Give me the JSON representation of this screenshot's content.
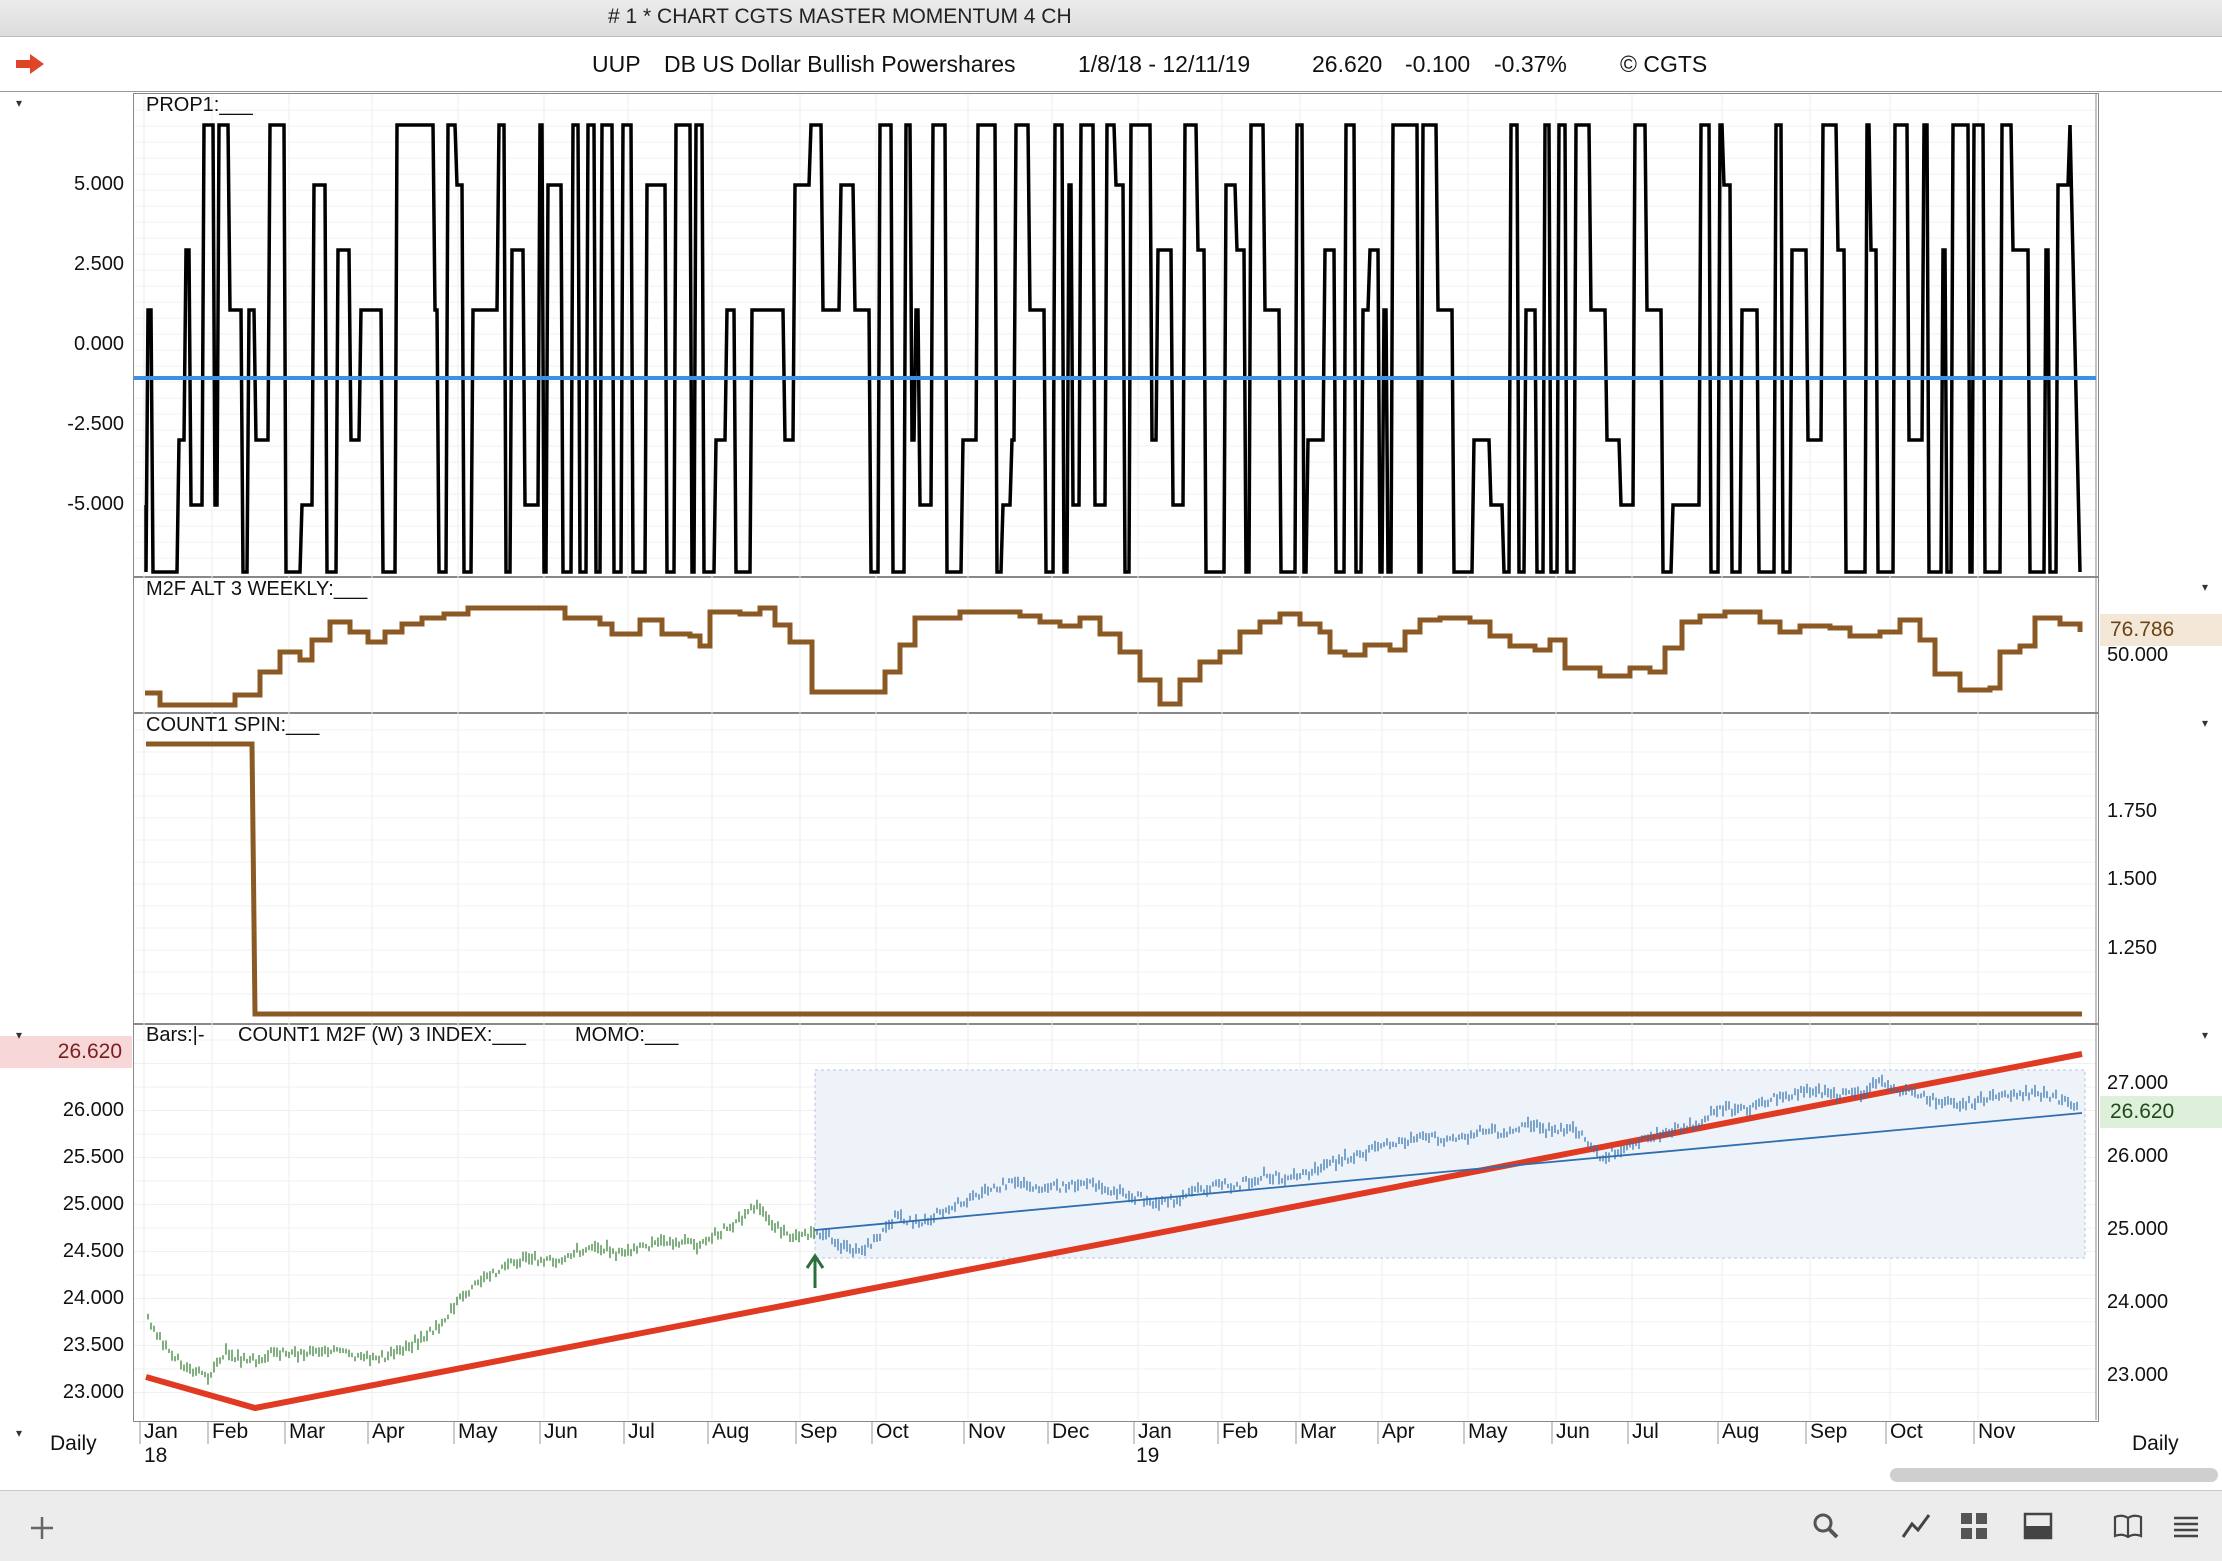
{
  "window": {
    "title": "# 1 * CHART CGTS MASTER MOMENTUM 4 CH"
  },
  "header": {
    "symbol": "UUP",
    "name": "DB US Dollar Bullish Powershares",
    "date_range": "1/8/18 - 12/11/19",
    "last": "26.620",
    "change": "-0.100",
    "change_pct": "-0.37%",
    "copyright": "© CGTS"
  },
  "panels": {
    "prop1": {
      "label": "PROP1:___",
      "ticks": [
        "5.000",
        "2.500",
        "0.000",
        "-2.500",
        "-5.000"
      ]
    },
    "m2f": {
      "label": "M2F ALT 3 WEEKLY:___",
      "right_badge": "76.786",
      "right_tick": "50.000"
    },
    "count1": {
      "label": "COUNT1 SPIN:___",
      "right_ticks": [
        "1.750",
        "1.500",
        "1.250"
      ]
    },
    "bars": {
      "label_bars": "Bars:|-",
      "label_index": "COUNT1 M2F (W) 3 INDEX:___",
      "label_momo": "MOMO:___",
      "left_badge": "26.620",
      "left_ticks": [
        "26.000",
        "25.500",
        "25.000",
        "24.500",
        "24.000",
        "23.500",
        "23.000"
      ],
      "right_ticks": [
        "27.000",
        "26.000",
        "25.000",
        "24.000",
        "23.000"
      ],
      "right_badge": "26.620"
    }
  },
  "xaxis": {
    "period_left": "Daily",
    "period_right": "Daily",
    "months": [
      "Jan",
      "Feb",
      "Mar",
      "Apr",
      "May",
      "Jun",
      "Jul",
      "Aug",
      "Sep",
      "Oct",
      "Nov",
      "Dec",
      "Jan",
      "Feb",
      "Mar",
      "Apr",
      "May",
      "Jun",
      "Jul",
      "Aug",
      "Sep",
      "Oct",
      "Nov"
    ],
    "year1": "18",
    "year2": "19"
  },
  "colors": {
    "prop": "#000000",
    "zero_line": "#3d8fe0",
    "m2f": "#8b5a24",
    "momo": "#e03a22",
    "index": "#2f6fae",
    "bars_up": "#2d7a2d"
  },
  "icons": [
    "red-arrow-icon",
    "plus-icon",
    "search-icon",
    "line-chart-icon",
    "grid-icon",
    "panel-icon",
    "book-icon",
    "list-icon"
  ]
}
